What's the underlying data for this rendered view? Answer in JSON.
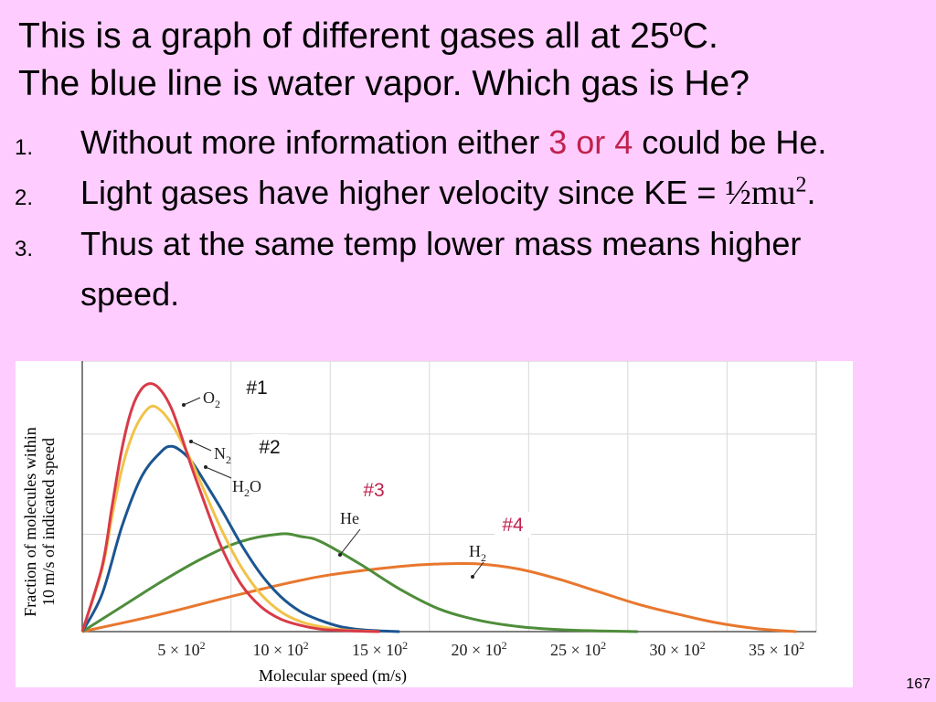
{
  "slide": {
    "title_line1": "This is a graph of different gases all at 25ºC.",
    "title_line2": "The blue line is water vapor. Which gas is He?",
    "points": [
      {
        "num": "1.",
        "pre": "Without more information either ",
        "hl1": "3",
        "mid": " or ",
        "hl2": "4",
        "post": " could be He."
      },
      {
        "num": "2.",
        "pre": "Light gases have higher velocity since KE = ",
        "formula": "½mu",
        "sup": "2",
        "post": "."
      },
      {
        "num": "3.",
        "line1": "Thus at the same temp lower mass means higher",
        "line2": "speed."
      }
    ],
    "page_number": "167"
  },
  "colors": {
    "background": "#ffccff",
    "highlight": "#c0224e",
    "o2": "#d83a48",
    "n2": "#f2c24a",
    "h2o": "#1c5590",
    "he": "#4e8d3a",
    "h2": "#e8772e",
    "markers": "#c0224e"
  },
  "chart_data": {
    "type": "line",
    "xlabel": "Molecular speed (m/s)",
    "ylabel_line1": "Fraction of molecules within",
    "ylabel_line2": "10 m/s of indicated speed",
    "xlim": [
      0,
      3700
    ],
    "ylim": [
      0,
      1
    ],
    "x_ticks": [
      {
        "value": 500,
        "mant": "5",
        "exp": "2"
      },
      {
        "value": 1000,
        "mant": "10",
        "exp": "2"
      },
      {
        "value": 1500,
        "mant": "15",
        "exp": "2"
      },
      {
        "value": 2000,
        "mant": "20",
        "exp": "2"
      },
      {
        "value": 2500,
        "mant": "25",
        "exp": "2"
      },
      {
        "value": 3000,
        "mant": "30",
        "exp": "2"
      },
      {
        "value": 3500,
        "mant": "35",
        "exp": "2"
      }
    ],
    "series": [
      {
        "key": "o2",
        "name": "O",
        "sub": "2",
        "color": "#d83a48",
        "x": [
          0,
          100,
          150,
          200,
          250,
          300,
          350,
          400,
          450,
          500,
          550,
          600,
          700,
          800,
          900,
          1000,
          1100,
          1200,
          1300,
          1400,
          1500
        ],
        "y": [
          0,
          0.26,
          0.5,
          0.73,
          0.89,
          0.97,
          0.99,
          0.96,
          0.89,
          0.78,
          0.66,
          0.55,
          0.34,
          0.19,
          0.1,
          0.05,
          0.025,
          0.01,
          0.005,
          0.002,
          0
        ]
      },
      {
        "key": "n2",
        "name": "N",
        "sub": "2",
        "color": "#f2c24a",
        "x": [
          0,
          100,
          150,
          200,
          250,
          300,
          350,
          400,
          450,
          500,
          550,
          600,
          700,
          800,
          900,
          1000,
          1100,
          1200,
          1300,
          1400,
          1500
        ],
        "y": [
          0,
          0.25,
          0.46,
          0.65,
          0.78,
          0.86,
          0.9,
          0.88,
          0.83,
          0.76,
          0.68,
          0.59,
          0.41,
          0.26,
          0.15,
          0.08,
          0.04,
          0.02,
          0.008,
          0.003,
          0
        ]
      },
      {
        "key": "h2o",
        "name": "H",
        "sub": "2",
        "suffix": "O",
        "color": "#1c5590",
        "x": [
          0,
          100,
          200,
          300,
          400,
          450,
          500,
          550,
          600,
          700,
          800,
          900,
          1000,
          1100,
          1200,
          1300,
          1400,
          1500,
          1600
        ],
        "y": [
          0,
          0.15,
          0.42,
          0.62,
          0.72,
          0.74,
          0.72,
          0.68,
          0.62,
          0.49,
          0.35,
          0.23,
          0.14,
          0.08,
          0.045,
          0.02,
          0.008,
          0.003,
          0
        ]
      },
      {
        "key": "he",
        "name": "He",
        "color": "#4e8d3a",
        "x": [
          0,
          200,
          400,
          600,
          800,
          1000,
          1100,
          1200,
          1400,
          1600,
          1800,
          2000,
          2200,
          2400,
          2600,
          2800
        ],
        "y": [
          0,
          0.1,
          0.2,
          0.29,
          0.36,
          0.39,
          0.38,
          0.36,
          0.27,
          0.17,
          0.09,
          0.045,
          0.02,
          0.008,
          0.003,
          0
        ]
      },
      {
        "key": "h2",
        "name": "H",
        "sub": "2",
        "color": "#e8772e",
        "x": [
          0,
          400,
          800,
          1200,
          1600,
          1800,
          2000,
          2200,
          2400,
          2600,
          2800,
          3000,
          3200,
          3400,
          3600
        ],
        "y": [
          0,
          0.07,
          0.15,
          0.22,
          0.26,
          0.27,
          0.27,
          0.25,
          0.21,
          0.16,
          0.11,
          0.07,
          0.035,
          0.012,
          0
        ]
      }
    ],
    "markers": [
      "#1",
      "#2",
      "#3",
      "#4"
    ]
  }
}
